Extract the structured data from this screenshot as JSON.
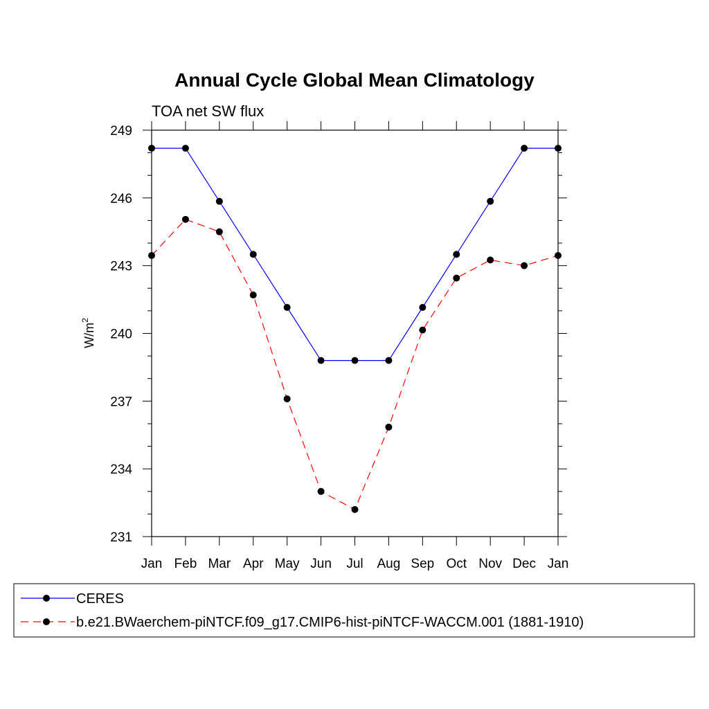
{
  "chart_data": {
    "type": "line",
    "title": "Annual Cycle Global Mean Climatology",
    "subtitle": "TOA net SW flux",
    "ylabel": "W/m",
    "ylabel_sup": "2",
    "xlabel": "",
    "categories": [
      "Jan",
      "Feb",
      "Mar",
      "Apr",
      "May",
      "Jun",
      "Jul",
      "Aug",
      "Sep",
      "Oct",
      "Nov",
      "Dec",
      "Jan"
    ],
    "ylim": [
      231,
      249
    ],
    "yticks": [
      231,
      234,
      237,
      240,
      243,
      246,
      249
    ],
    "grid": false,
    "legend_position": "bottom",
    "series": [
      {
        "name": "CERES",
        "color": "#0000ff",
        "dash": "solid",
        "values": [
          248.2,
          248.2,
          245.85,
          243.5,
          241.15,
          238.8,
          238.8,
          238.8,
          241.15,
          243.5,
          245.85,
          248.2,
          248.2
        ]
      },
      {
        "name": "b.e21.BWaerchem-piNTCF.f09_g17.CMIP6-hist-piNTCF-WACCM.001 (1881-1910)",
        "color": "#ff0000",
        "dash": "dashed",
        "values": [
          243.45,
          245.05,
          244.5,
          241.7,
          237.1,
          233.0,
          232.2,
          235.85,
          240.15,
          242.45,
          243.25,
          243.0,
          243.45
        ]
      }
    ]
  }
}
